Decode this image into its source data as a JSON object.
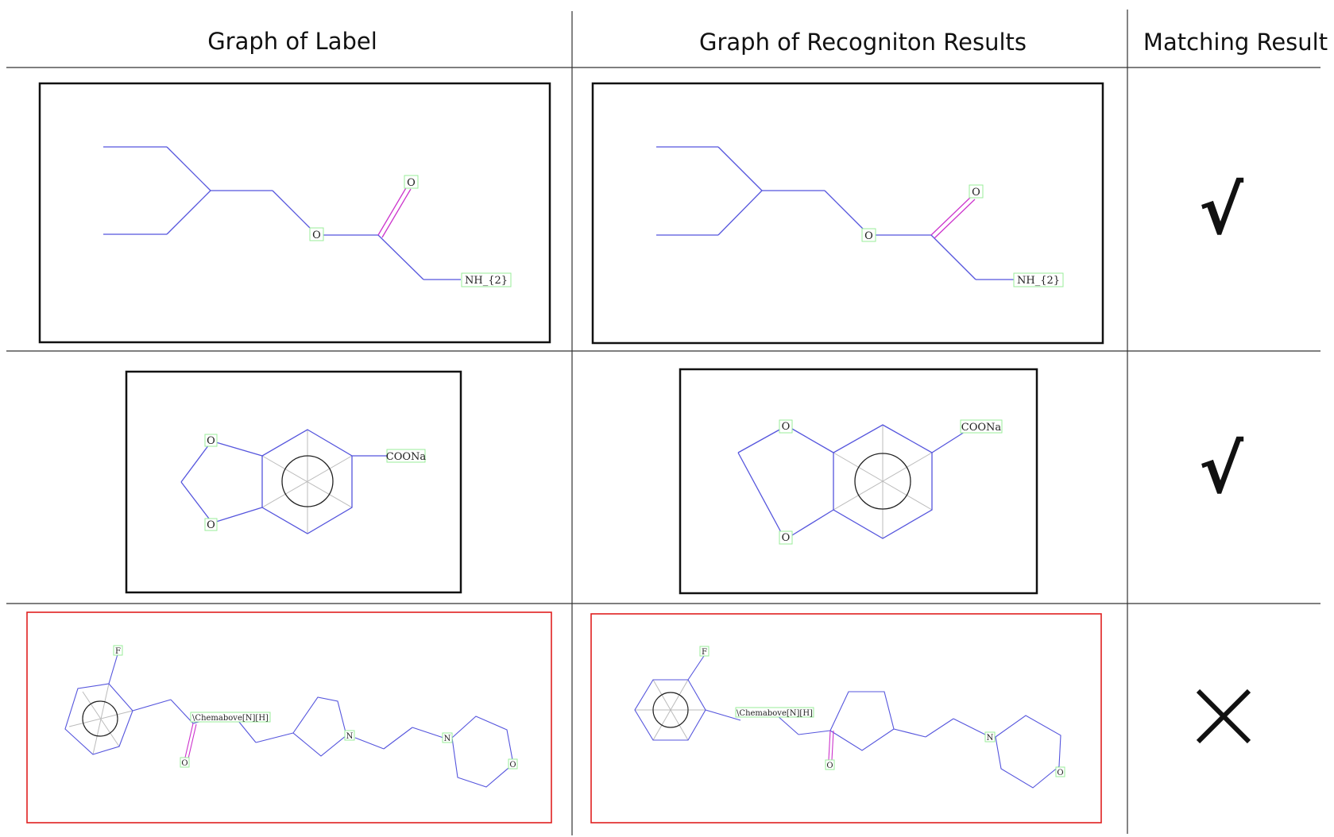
{
  "columns": {
    "label": "Graph of Label",
    "recognition": "Graph of Recogniton Results",
    "matching": "Matching Result"
  },
  "rows": [
    {
      "result": "√",
      "match": true,
      "label_atoms": [
        "O",
        "O",
        "NH_{2}"
      ],
      "recognition_atoms": [
        "O",
        "O",
        "NH_{2}"
      ]
    },
    {
      "result": "√",
      "match": true,
      "label_atoms": [
        "O",
        "O",
        "COONa"
      ],
      "recognition_atoms": [
        "O",
        "O",
        "COONa"
      ]
    },
    {
      "result": "×",
      "match": false,
      "label_atoms": [
        "F",
        "\\Chemabove[N][H]",
        "O",
        "N",
        "N",
        "O"
      ],
      "recognition_atoms": [
        "F",
        "\\Chemabove[N][H]",
        "O",
        "N",
        "O"
      ]
    }
  ],
  "colors": {
    "bond": "#5555dd",
    "double_bond": "#cc33cc",
    "atom_box": "#99ee99",
    "frame_match": "#111111",
    "frame_mismatch": "#e02020",
    "ring_spokes": "#bbbbbb"
  }
}
